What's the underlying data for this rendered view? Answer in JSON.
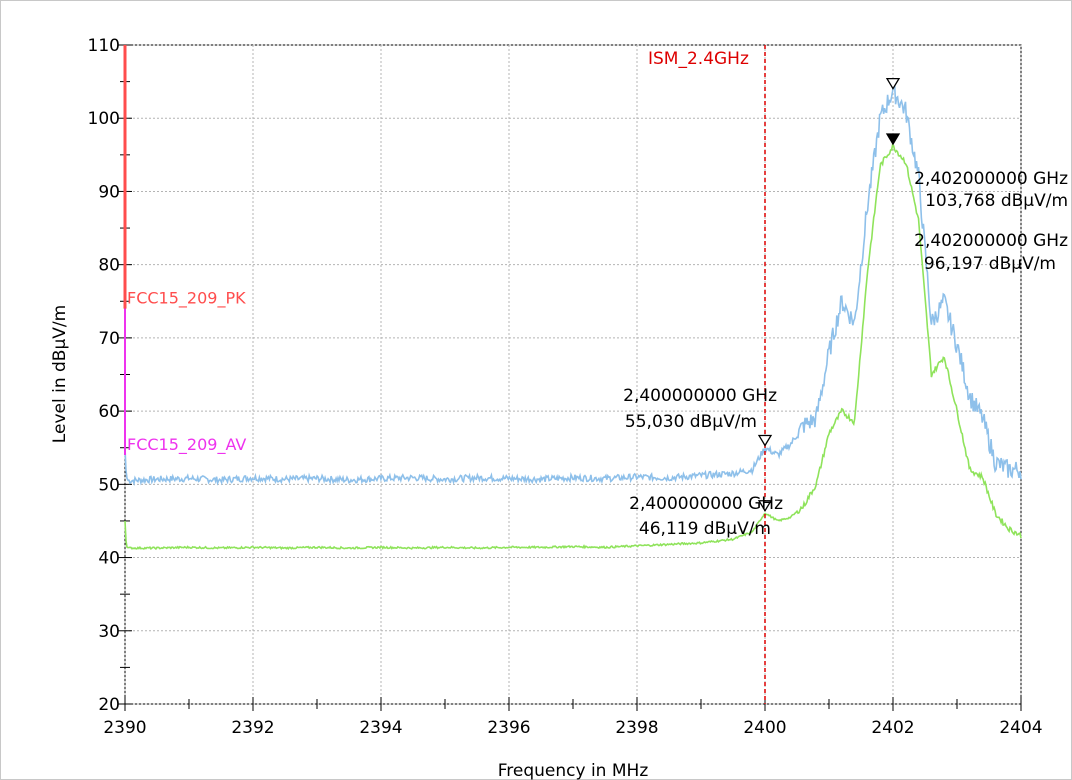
{
  "chart_data": {
    "type": "line",
    "title": "",
    "xlabel": "Frequency in MHz",
    "ylabel": "Level in dBµV/m",
    "xlim": [
      2390,
      2404
    ],
    "ylim": [
      20,
      110
    ],
    "x_ticks": [
      "2390",
      "2392",
      "2394",
      "2396",
      "2398",
      "2400",
      "2402",
      "2404"
    ],
    "y_ticks": [
      "20",
      "30",
      "40",
      "50",
      "60",
      "70",
      "80",
      "90",
      "100",
      "110"
    ],
    "grid": true,
    "colors": {
      "peak": "#8ec0ea",
      "average": "#8fe35b",
      "limit_pk": "#ff4d4d",
      "limit_av": "#ee33ee",
      "ism_line": "#dd0000",
      "marker_text": "#000000"
    },
    "series": [
      {
        "key": "peak",
        "x": [
          2390.0,
          2390.02,
          2390.05,
          2390.5,
          2391.0,
          2391.5,
          2392.0,
          2392.5,
          2393.0,
          2393.5,
          2394.0,
          2394.5,
          2395.0,
          2395.5,
          2396.0,
          2396.5,
          2397.0,
          2397.5,
          2398.0,
          2398.5,
          2399.0,
          2399.5,
          2399.8,
          2400.0,
          2400.2,
          2400.4,
          2400.6,
          2400.8,
          2401.0,
          2401.2,
          2401.4,
          2401.6,
          2401.8,
          2402.0,
          2402.2,
          2402.4,
          2402.6,
          2402.8,
          2403.0,
          2403.2,
          2403.4,
          2403.6,
          2403.8,
          2404.0
        ],
        "values": [
          55.0,
          51.0,
          50.5,
          50.7,
          50.8,
          50.6,
          50.9,
          50.7,
          50.8,
          50.6,
          50.8,
          50.9,
          50.7,
          50.9,
          50.8,
          50.7,
          50.9,
          50.8,
          51.0,
          50.9,
          51.2,
          51.5,
          52.0,
          55.0,
          54.0,
          55.5,
          58.0,
          59.0,
          68.0,
          75.0,
          72.0,
          88.0,
          100.0,
          103.8,
          101.0,
          92.0,
          72.0,
          75.0,
          69.0,
          62.0,
          59.0,
          53.0,
          52.0,
          52.0
        ]
      },
      {
        "key": "average",
        "x": [
          2390.0,
          2390.02,
          2390.05,
          2390.5,
          2391.0,
          2391.5,
          2392.0,
          2392.5,
          2393.0,
          2393.5,
          2394.0,
          2394.5,
          2395.0,
          2395.5,
          2396.0,
          2396.5,
          2397.0,
          2397.5,
          2398.0,
          2398.5,
          2399.0,
          2399.5,
          2399.8,
          2400.0,
          2400.2,
          2400.4,
          2400.6,
          2400.8,
          2401.0,
          2401.2,
          2401.4,
          2401.6,
          2401.8,
          2402.0,
          2402.2,
          2402.4,
          2402.6,
          2402.8,
          2403.0,
          2403.2,
          2403.4,
          2403.6,
          2403.8,
          2404.0
        ],
        "values": [
          45.0,
          41.5,
          41.3,
          41.3,
          41.4,
          41.3,
          41.4,
          41.3,
          41.4,
          41.3,
          41.4,
          41.3,
          41.4,
          41.3,
          41.4,
          41.4,
          41.5,
          41.4,
          41.6,
          41.8,
          42.0,
          42.5,
          43.5,
          46.1,
          45.0,
          45.5,
          47.0,
          50.0,
          57.0,
          60.0,
          58.5,
          79.0,
          93.5,
          96.2,
          94.0,
          86.0,
          65.0,
          67.5,
          60.0,
          52.0,
          51.0,
          46.0,
          44.0,
          43.0
        ]
      }
    ],
    "limit_lines": [
      {
        "key": "pk",
        "name": "FCC15_209_PK",
        "x": [
          2390,
          2390
        ],
        "values": [
          110,
          74
        ]
      },
      {
        "key": "av",
        "name": "FCC15_209_AV",
        "x": [
          2390,
          2390
        ],
        "values": [
          110,
          54
        ]
      }
    ],
    "vertical_line": {
      "label": "ISM_2.4GHz",
      "x": 2400
    },
    "markers": [
      {
        "key": "peak_2402",
        "x": 2402,
        "y": 103.768,
        "filled": false,
        "freq_label": "2,402000000 GHz",
        "level_label": "103,768 dBµV/m"
      },
      {
        "key": "avg_2402",
        "x": 2402,
        "y": 96.197,
        "filled": true,
        "freq_label": "2,402000000 GHz",
        "level_label": "96,197 dBµV/m"
      },
      {
        "key": "peak_2400",
        "x": 2400,
        "y": 55.03,
        "filled": false,
        "freq_label": "2,400000000 GHz",
        "level_label": "55,030 dBµV/m"
      },
      {
        "key": "avg_2400",
        "x": 2400,
        "y": 46.119,
        "filled": false,
        "freq_label": "2,400000000 GHz",
        "level_label": "46,119 dBµV/m"
      }
    ]
  }
}
